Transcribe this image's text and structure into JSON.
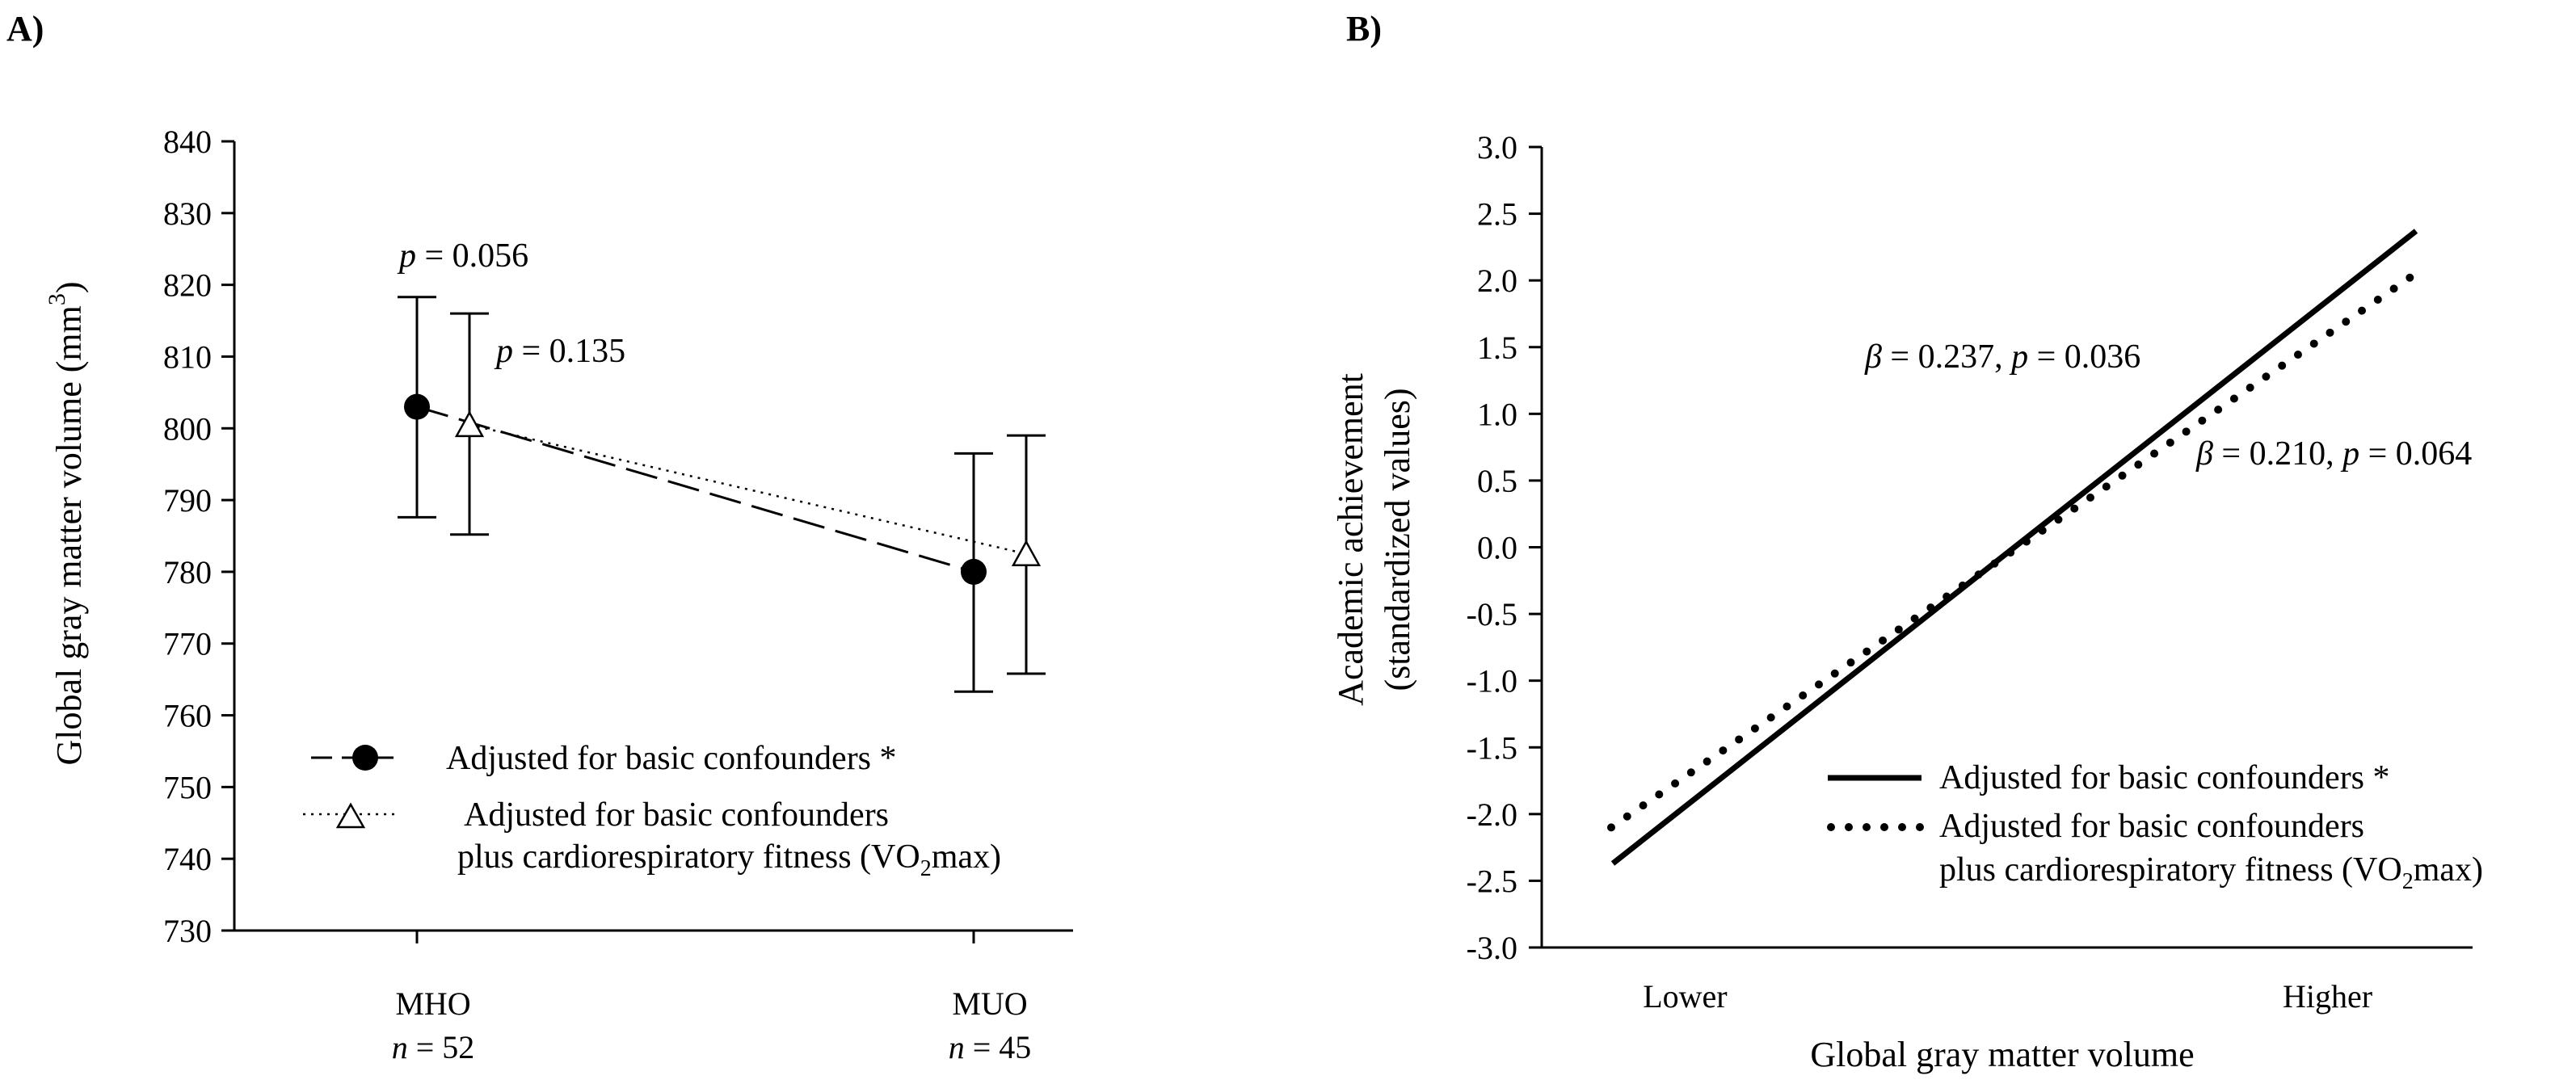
{
  "figure": {
    "panels": [
      "A)",
      "B)"
    ]
  },
  "chart_data": [
    {
      "panel": "A)",
      "type": "scatter",
      "title": "",
      "xlabel": "",
      "ylabel": "Global gray matter volume (mm",
      "ylabel_superscript": "3",
      "ylabel_close": ")",
      "ylim": [
        730,
        840
      ],
      "yticks": [
        730,
        740,
        750,
        760,
        770,
        780,
        790,
        800,
        810,
        820,
        830,
        840
      ],
      "categories": [
        {
          "name": "MHO",
          "n_label": "n",
          "n_text": " = 52"
        },
        {
          "name": "MUO",
          "n_label": "n",
          "n_text": " = 45"
        }
      ],
      "series": [
        {
          "name": "Adjusted for basic confounders *",
          "marker": "filled-circle",
          "line": "dashed",
          "values": [
            803,
            780
          ],
          "error_upper": [
            818.3,
            796.5
          ],
          "error_lower": [
            787.6,
            763.3
          ]
        },
        {
          "name": "Adjusted for basic confounders",
          "name_line2": "plus cardiorespiratory fitness (VO",
          "name_line2_sub": "2",
          "name_line2_end": "max)",
          "marker": "open-triangle",
          "line": "dotted",
          "values": [
            800.5,
            782.5
          ],
          "error_upper": [
            816,
            799
          ],
          "error_lower": [
            785.2,
            765.8
          ]
        }
      ],
      "annotations": [
        {
          "italic": "p",
          "text": " = 0.056"
        },
        {
          "italic": "p",
          "text": " = 0.135"
        }
      ]
    },
    {
      "panel": "B)",
      "type": "line",
      "title": "",
      "xlabel": "Global gray matter volume",
      "ylabel": "Academic achievement",
      "ylabel_line2": "(standardized values)",
      "ylim": [
        -3.0,
        3.0
      ],
      "yticks": [
        "-3.0",
        "-2.5",
        "-2.0",
        "-1.5",
        "-1.0",
        "-0.5",
        "0.0",
        "0.5",
        "1.0",
        "1.5",
        "2.0",
        "2.5",
        "3.0"
      ],
      "xlim": [
        0,
        1
      ],
      "xticks": [
        {
          "label": "Lower",
          "x": 0.1
        },
        {
          "label": "Higher",
          "x": 0.9
        }
      ],
      "series": [
        {
          "name": "Adjusted for basic confounders *",
          "line": "solid",
          "x": [
            0.0,
            1.0
          ],
          "y": [
            -2.37,
            2.37
          ]
        },
        {
          "name": "Adjusted for basic confounders",
          "name_line2": "plus cardiorespiratory fitness (VO",
          "name_line2_sub": "2",
          "name_line2_end": "max)",
          "line": "dotted",
          "x": [
            0.0,
            1.0
          ],
          "y": [
            -2.1,
            2.04
          ]
        }
      ],
      "annotations": [
        {
          "symbol": "β",
          "text1": " = 0.237, ",
          "italic": "p",
          "text2": " = 0.036"
        },
        {
          "symbol": "β",
          "text1": " = 0.210, ",
          "italic": "p",
          "text2": " = 0.064"
        }
      ]
    }
  ]
}
